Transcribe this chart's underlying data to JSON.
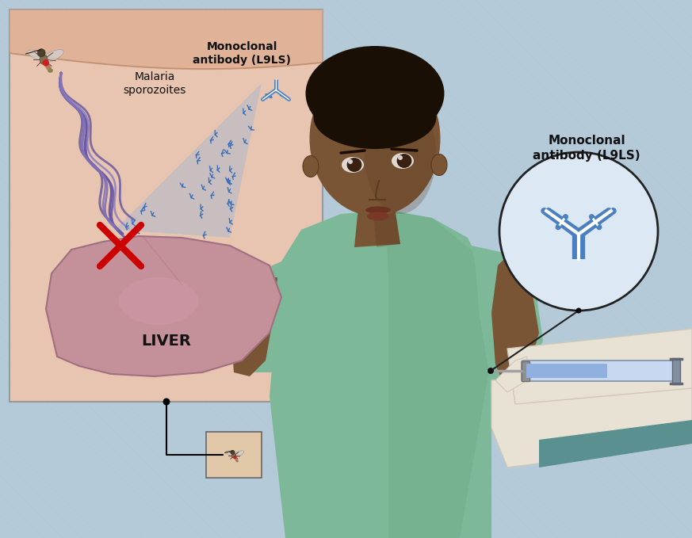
{
  "bg_color": "#b5cad8",
  "inset_bg": "#e8c5b0",
  "inset_border": "#999999",
  "liver_color": "#c4909a",
  "liver_outline": "#a07080",
  "liver_text": "LIVER",
  "cross_color": "#cc0000",
  "antibody_inset_label": "Monoclonal\nantibody (L9LS)",
  "antibody_circle_label": "Monoclonal\nantibody (L9LS)",
  "malaria_label": "Malaria\nsporozoites",
  "sporozoite_color": "#7060a0",
  "sporozoite_color2": "#9080c0",
  "antibody_color": "#4a7fc0",
  "fan_color": "#9ab5d8",
  "circle_bg": "#dde8f5",
  "circle_border": "#222222",
  "label_color": "#111111",
  "connector_color": "#222222",
  "label_fontsize": 10,
  "liver_fontsize": 14
}
